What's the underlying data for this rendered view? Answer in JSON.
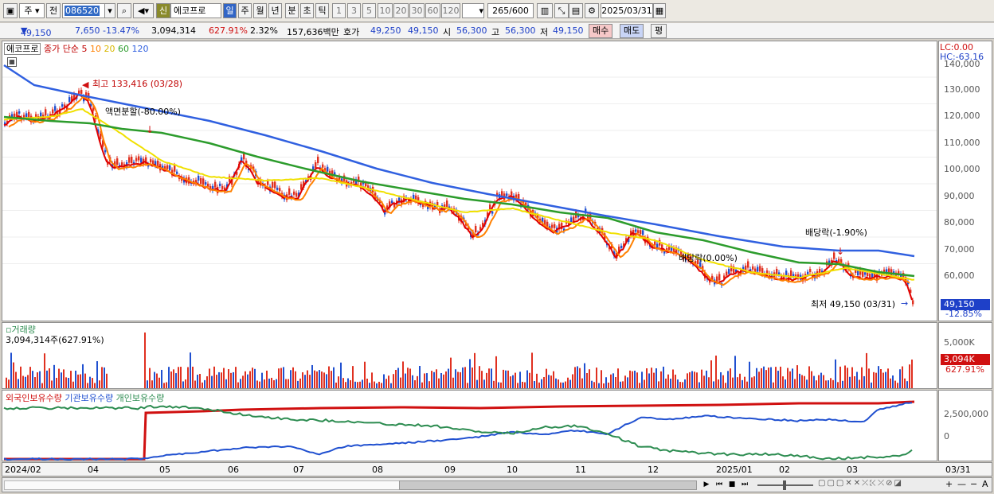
{
  "toolbar": {
    "period_buttons": [
      "주",
      "전"
    ],
    "stock_code": "086520",
    "credit_badge": "신",
    "stock_name": "에코프로",
    "timeframes": [
      "일",
      "주",
      "월",
      "년",
      "분",
      "초",
      "틱"
    ],
    "active_timeframe": "일",
    "intervals": [
      "1",
      "3",
      "5",
      "10",
      "20",
      "30",
      "60",
      "120"
    ],
    "count": "265",
    "count_max": "/600",
    "date": "2025/03/31"
  },
  "quote": {
    "price": "49,150",
    "change": "7,650",
    "change_pct": "-13.47%",
    "volume": "3,094,314",
    "volume_ratio": "627.91%",
    "turnover": "2.32%",
    "amount": "157,636백만",
    "ask_label": "호가",
    "ask1": "49,250",
    "bid1": "49,150",
    "open_label": "시",
    "open": "56,300",
    "high_label": "고",
    "high": "56,300",
    "low_label": "저",
    "low": "49,150",
    "buy_label": "매수",
    "sell_label": "매도",
    "eval_label": "평"
  },
  "price_panel": {
    "name": "에코프로",
    "ma_label": "종가 단순",
    "ma_periods": [
      "5",
      "10",
      "20",
      "60",
      "120"
    ],
    "ma_colors": [
      "#e00000",
      "#ff8000",
      "#e0c000",
      "#2c9c2c",
      "#3060e0"
    ],
    "lc": "LC:0.00",
    "hc": "HC:-63.16",
    "y_ticks": [
      "140,000",
      "130,000",
      "120,000",
      "110,000",
      "100,000",
      "90,000",
      "80,000",
      "70,000",
      "60,000"
    ],
    "current_tag": "49,150",
    "current_pct": "-12.85%",
    "annotations": {
      "high": "최고 133,416 (03/28)",
      "split": "액면분할(-80.00%)",
      "div1": "배당락(0.00%)",
      "div2": "배당락(-1.90%)",
      "low": "최저 49,150 (03/31)"
    }
  },
  "volume_panel": {
    "title": "거래량",
    "value": "3,094,314주(627.91%)",
    "y_tick": "5,000K",
    "tag": "3,094K",
    "tag_pct": "627.91%"
  },
  "holding_panel": {
    "legend": [
      "외국인보유수량",
      "기관보유수량",
      "개인보유수량"
    ],
    "legend_colors": [
      "#d01010",
      "#2050d0",
      "#2c8c50"
    ],
    "y_ticks": [
      "2,500,000",
      "0"
    ]
  },
  "x_axis": [
    "2024/02",
    "04",
    "05",
    "06",
    "07",
    "08",
    "09",
    "10",
    "11",
    "12",
    "2025/01",
    "02",
    "03",
    "03/31"
  ]
}
